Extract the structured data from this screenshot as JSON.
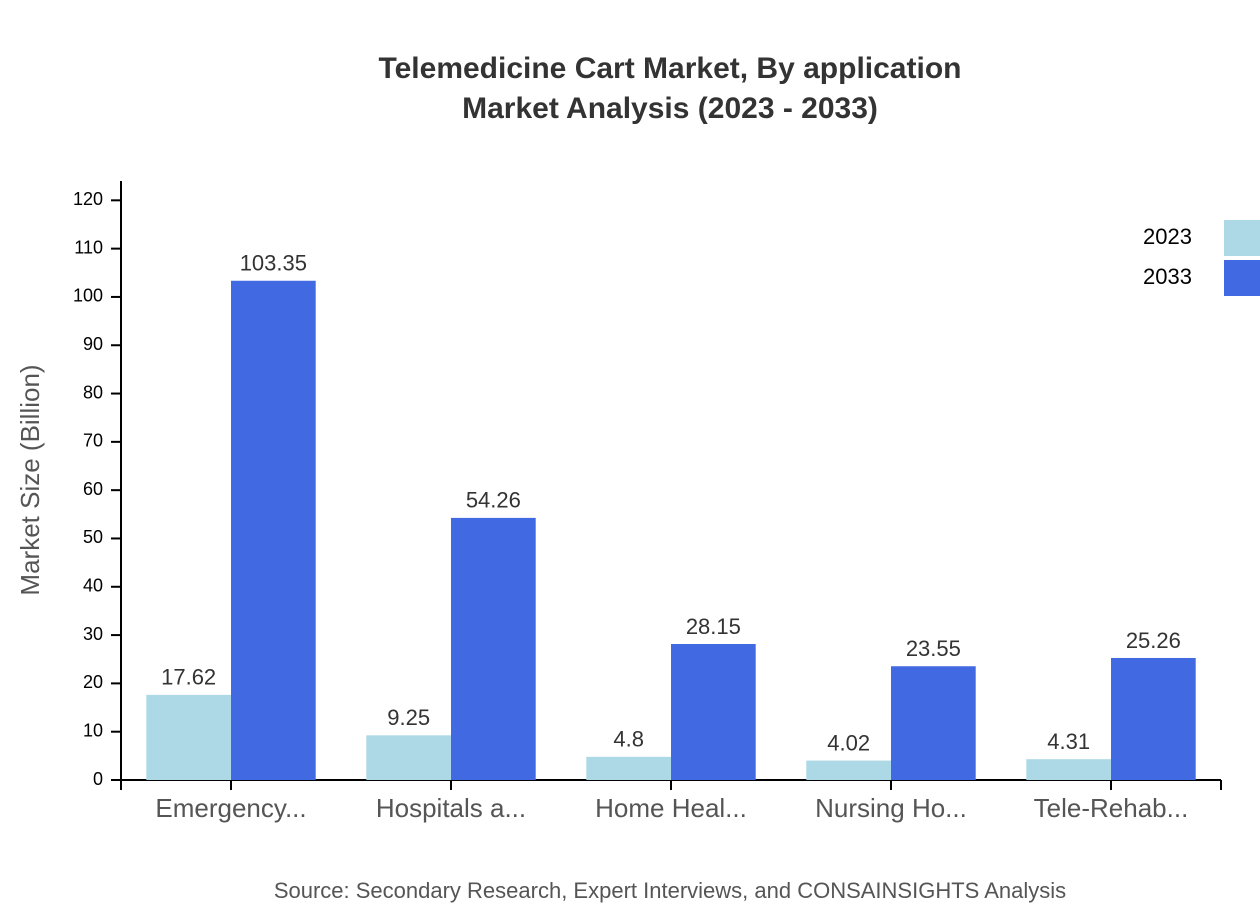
{
  "chart_data": {
    "type": "bar",
    "title": "Telemedicine Cart Market, By application",
    "subtitle": "Market Analysis (2023 - 2033)",
    "y_label": "Market Size (Billion)",
    "source": "Source: Secondary Research, Expert Interviews, and CONSAINSIGHTS Analysis",
    "categories": [
      "Emergency...",
      "Hospitals a...",
      "Home Heal...",
      "Nursing Ho...",
      "Tele-Rehab..."
    ],
    "series": [
      {
        "name": "2023",
        "color": "#add8e6",
        "values": [
          17.62,
          9.25,
          4.8,
          4.02,
          4.31
        ]
      },
      {
        "name": "2033",
        "color": "#4169e1",
        "values": [
          103.35,
          54.26,
          28.15,
          23.55,
          25.26
        ]
      }
    ],
    "ylim": [
      0,
      124
    ],
    "yticks": [
      0,
      10,
      20,
      30,
      40,
      50,
      60,
      70,
      80,
      90,
      100,
      110,
      120
    ]
  }
}
